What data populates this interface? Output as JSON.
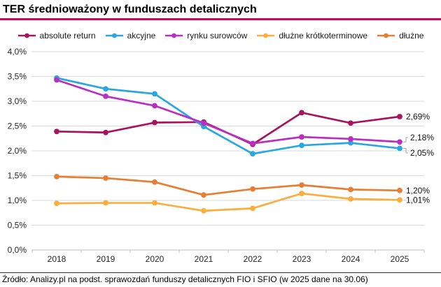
{
  "header": {
    "title": "TER średnioważony w funduszach detalicznych"
  },
  "chart_data": {
    "type": "line",
    "title": "TER średnioważony w funduszach detalicznych",
    "categories": [
      "2018",
      "2019",
      "2020",
      "2021",
      "2022",
      "2023",
      "2024",
      "2025"
    ],
    "series": [
      {
        "name": "absolute return",
        "color": "#A8125E",
        "values": [
          2.39,
          2.37,
          2.57,
          2.58,
          2.13,
          2.77,
          2.56,
          2.69
        ],
        "end_label": "2,69%"
      },
      {
        "name": "akcyjne",
        "color": "#2AA7E0",
        "values": [
          3.47,
          3.25,
          3.15,
          2.49,
          1.94,
          2.11,
          2.16,
          2.05
        ],
        "end_label": "2,05%"
      },
      {
        "name": "rynku surowców",
        "color": "#BA2EC1",
        "values": [
          3.43,
          3.1,
          2.91,
          2.56,
          2.15,
          2.28,
          2.24,
          2.18
        ],
        "end_label": "2,18%"
      },
      {
        "name": "dłużne krótkoterminowe",
        "color": "#FBAD3D",
        "values": [
          0.94,
          0.95,
          0.95,
          0.79,
          0.84,
          1.14,
          1.03,
          1.01
        ],
        "end_label": "1,01%"
      },
      {
        "name": "dłużne",
        "color": "#E67E34",
        "values": [
          1.48,
          1.45,
          1.37,
          1.11,
          1.23,
          1.31,
          1.22,
          1.2
        ],
        "end_label": "1,20%"
      }
    ],
    "ylim": [
      0,
      4
    ],
    "ytick_step": 0.5,
    "ytick_labels": [
      "0,0%",
      "0,5%",
      "1,0%",
      "1,5%",
      "2,0%",
      "2,5%",
      "3,0%",
      "3,5%",
      "4,0%"
    ],
    "grid": true,
    "legend_position": "top",
    "unit": "%"
  },
  "footer": {
    "source": "Źródło: Analizy.pl na podst. sprawozdań funduszy detalicznych FIO i SFIO (w 2025 dane na 30.06)"
  },
  "colors": {
    "accent": "#C30B60",
    "grid": "#DADADA",
    "axis": "#BFBFBF",
    "leader": "#A6A6A6",
    "text": "#1A1A1A"
  }
}
